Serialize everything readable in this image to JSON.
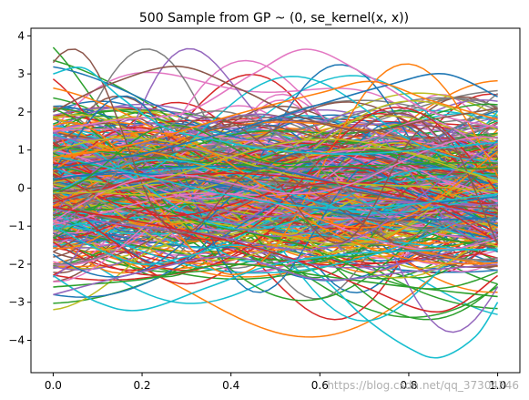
{
  "chart_data": {
    "type": "line",
    "title": "500 Sample from GP ~ (0, se_kernel(x, x))",
    "xlabel": "",
    "ylabel": "",
    "xlim": [
      -0.05,
      1.05
    ],
    "ylim": [
      -4.85,
      4.2
    ],
    "x_ticks": [
      "0.0",
      "0.2",
      "0.4",
      "0.6",
      "0.8",
      "1.0"
    ],
    "y_ticks": [
      "4",
      "3",
      "2",
      "1",
      "0",
      "−1",
      "−2",
      "−3",
      "−4"
    ],
    "n_series": 500,
    "x_range": [
      0,
      1
    ],
    "kernel": "se_kernel",
    "grid": false,
    "legend": "none",
    "palette": [
      "#1f77b4",
      "#ff7f0e",
      "#2ca02c",
      "#d62728",
      "#9467bd",
      "#8c564b",
      "#e377c2",
      "#7f7f7f",
      "#bcbd22",
      "#17becf"
    ],
    "highlight_series": [
      {
        "color": "#17becf",
        "x": [
          0.0,
          0.1,
          0.2,
          0.3,
          0.4,
          0.5,
          0.6,
          0.7,
          0.8,
          0.87,
          0.95,
          1.0
        ],
        "y": [
          -1.0,
          -1.6,
          -2.0,
          -1.8,
          -1.5,
          -1.7,
          -2.3,
          -3.4,
          -4.2,
          -4.45,
          -3.9,
          -3.0
        ]
      },
      {
        "color": "#e377c2",
        "x": [
          0.0,
          0.15,
          0.3,
          0.45,
          0.57,
          0.7,
          0.85,
          1.0
        ],
        "y": [
          1.5,
          1.8,
          2.0,
          3.0,
          3.65,
          3.0,
          2.0,
          1.6
        ]
      },
      {
        "color": "#8c564b",
        "x": [
          0.0,
          0.12,
          0.28,
          0.42,
          0.55,
          0.7,
          0.85,
          1.0
        ],
        "y": [
          2.0,
          2.7,
          3.2,
          2.6,
          1.9,
          1.5,
          1.8,
          2.1
        ]
      },
      {
        "color": "#17becf",
        "x": [
          0.0,
          0.07,
          0.15,
          0.25,
          0.35,
          0.5,
          0.7,
          1.0
        ],
        "y": [
          3.0,
          3.15,
          2.4,
          1.6,
          1.3,
          1.0,
          0.9,
          1.2
        ]
      },
      {
        "color": "#1f77b4",
        "x": [
          0.0,
          0.2,
          0.4,
          0.6,
          0.75,
          0.88,
          1.0
        ],
        "y": [
          0.5,
          0.9,
          1.5,
          2.2,
          2.7,
          3.0,
          2.4
        ]
      },
      {
        "color": "#d62728",
        "x": [
          0.0,
          0.2,
          0.4,
          0.55,
          0.7,
          0.87,
          1.0
        ],
        "y": [
          -0.5,
          -0.9,
          -1.4,
          -1.9,
          -2.6,
          -3.25,
          -2.3
        ]
      },
      {
        "color": "#17becf",
        "x": [
          0.0,
          0.1,
          0.2,
          0.35,
          0.5,
          0.7,
          1.0
        ],
        "y": [
          -2.3,
          -3.0,
          -3.2,
          -2.6,
          -2.0,
          -1.7,
          -1.6
        ]
      },
      {
        "color": "#ff7f0e",
        "x": [
          0.0,
          0.2,
          0.4,
          0.6,
          0.72,
          0.85,
          1.0
        ],
        "y": [
          0.8,
          1.2,
          1.9,
          2.5,
          2.8,
          2.3,
          1.8
        ]
      },
      {
        "color": "#2ca02c",
        "x": [
          0.0,
          0.2,
          0.4,
          0.6,
          0.8,
          1.0
        ],
        "y": [
          -2.6,
          -2.4,
          -2.0,
          -2.3,
          -2.6,
          -2.85
        ]
      },
      {
        "color": "#9467bd",
        "x": [
          0.0,
          0.2,
          0.4,
          0.6,
          0.8,
          1.0
        ],
        "y": [
          -2.8,
          -2.2,
          -1.8,
          -2.4,
          -2.2,
          -2.0
        ]
      }
    ]
  },
  "watermark": "https://blog.csdn.net/qq_37304346"
}
